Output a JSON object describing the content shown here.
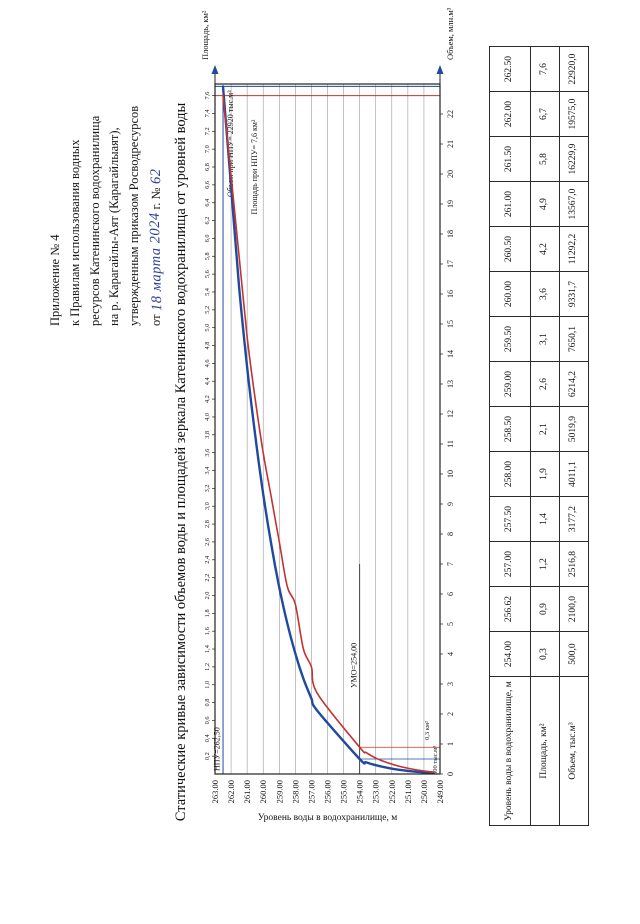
{
  "page": {
    "header": {
      "lines": [
        "Приложение № 4",
        "к Правилам использования водных",
        "ресурсов Катенинского водохранилища",
        "на р. Карагайлы-Аят (Карагайлыаят),",
        "утвержденным приказом Росводресурсов"
      ],
      "last_line": {
        "prefix": "от ",
        "date": "18 марта 2024",
        "middle": " г. № ",
        "number": "62"
      },
      "ink_color": "#2b3f95"
    },
    "title": "Статические кривые зависимости объемов воды и площадей зеркала Катенинского водохранилища от уровней воды"
  },
  "chart_data": {
    "type": "line",
    "title": "Статические кривые зависимости объемов воды и площадей зеркала Катенинского водохранилища от уровней воды",
    "y_axis": {
      "label": "Уровень воды в водохранилище, м",
      "min": 249,
      "max": 263,
      "tick_step": 1
    },
    "top_axis": {
      "label": "Площадь, км²",
      "tick_min": 0.2,
      "tick_max": 7.6,
      "tick_step": 0.2,
      "axis_max": 7.73
    },
    "bottom_axis": {
      "label": "Объем, млн.м³",
      "tick_min": 0,
      "tick_max": 22,
      "tick_step": 1,
      "axis_max": 23
    },
    "grid": "horizontal",
    "note": "points below level 254.0 are read approximately from the curve tails",
    "series": [
      {
        "name": "Объем воды",
        "units": "млн.м³",
        "axis": "bottom",
        "color": "#1f4a9e",
        "width": 2.4,
        "levels": [
          249.4,
          250.6,
          251.8,
          252.9,
          253.6,
          254.0,
          256.62,
          257.0,
          257.5,
          258.0,
          258.5,
          259.0,
          259.5,
          260.0,
          260.5,
          261.0,
          261.5,
          262.0,
          262.5
        ],
        "values": [
          0.03,
          0.08,
          0.16,
          0.28,
          0.39,
          0.5,
          2.1,
          2.5168,
          3.1772,
          4.0111,
          5.0199,
          6.2142,
          7.6501,
          9.3317,
          11.2922,
          13.567,
          16.2299,
          19.575,
          22.92
        ]
      },
      {
        "name": "Площадь зеркала",
        "units": "км²",
        "axis": "top",
        "color": "#c13431",
        "width": 1.6,
        "levels": [
          249.4,
          250.6,
          251.8,
          252.9,
          253.6,
          254.0,
          256.62,
          257.0,
          257.5,
          258.0,
          258.5,
          259.0,
          259.5,
          260.0,
          260.5,
          261.0,
          261.5,
          262.0,
          262.5
        ],
        "values": [
          0.02,
          0.05,
          0.1,
          0.17,
          0.24,
          0.3,
          0.9,
          1.2,
          1.4,
          1.9,
          2.1,
          2.6,
          3.1,
          3.6,
          4.2,
          4.9,
          5.8,
          6.7,
          7.6
        ]
      }
    ],
    "annotations": {
      "npu_line": {
        "level": 262.5,
        "label": "НПУ=262,50",
        "color": "#1f4a9e"
      },
      "umo_line": {
        "level": 254.0,
        "label": "УМО=254,00",
        "color": "#333333"
      },
      "volume_at_npu": {
        "value_mln": 22.92,
        "label": "Объем при НПУ= 22920 тыс.м³",
        "color": "#1f4a9e"
      },
      "area_at_npu": {
        "value": 7.6,
        "label": "Площадь при НПУ= 7,6 км²",
        "color": "#c13431"
      },
      "volume_at_umo": {
        "value_mln": 0.5,
        "label": "500 тыс.м³",
        "color": "#1f4a9e"
      },
      "area_at_umo": {
        "value": 0.3,
        "label": "0,3 км²",
        "color": "#c13431"
      }
    }
  },
  "table": {
    "rows": [
      {
        "header": "Уровень воды в водохранилище, м",
        "cells": [
          "254.00",
          "256.62",
          "257.00",
          "257.50",
          "258.00",
          "258.50",
          "259.00",
          "259.50",
          "260.00",
          "260.50",
          "261.00",
          "261.50",
          "262.00",
          "262.50"
        ]
      },
      {
        "header": "Площадь, км²",
        "cells": [
          "0,3",
          "0,9",
          "1,2",
          "1,4",
          "1,9",
          "2,1",
          "2,6",
          "3,1",
          "3,6",
          "4,2",
          "4,9",
          "5,8",
          "6,7",
          "7,6"
        ]
      },
      {
        "header": "Объем, тыс.м³",
        "cells": [
          "500,0",
          "2100,0",
          "2516,8",
          "3177,2",
          "4011,1",
          "5019,9",
          "6214,2",
          "7650,1",
          "9331,7",
          "11292,2",
          "13567,0",
          "16229,9",
          "19575,0",
          "22920,0"
        ]
      }
    ]
  }
}
